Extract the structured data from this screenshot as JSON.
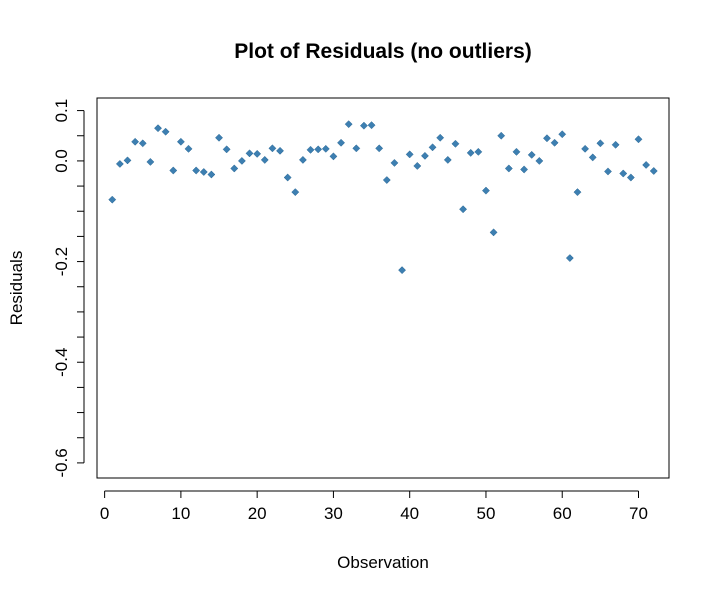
{
  "chart_data": {
    "type": "scatter",
    "title": "Plot of Residuals (no outliers)",
    "xlabel": "Observation",
    "ylabel": "Residuals",
    "xlim": [
      -1,
      74
    ],
    "ylim": [
      -0.63,
      0.125
    ],
    "x_ticks": [
      0,
      10,
      20,
      30,
      40,
      50,
      60,
      70
    ],
    "y_ticks": [
      0.1,
      0.05,
      0.0,
      -0.05,
      -0.1,
      -0.15,
      -0.2,
      -0.25,
      -0.3,
      -0.35,
      -0.4,
      -0.45,
      -0.5,
      -0.55,
      -0.6
    ],
    "y_tick_labels": [
      {
        "value": 0.1,
        "label": "0.1"
      },
      {
        "value": 0.0,
        "label": "0.0"
      },
      {
        "value": -0.2,
        "label": "-0.2"
      },
      {
        "value": -0.4,
        "label": "-0.4"
      },
      {
        "value": -0.6,
        "label": "-0.6"
      }
    ],
    "grid": false,
    "point_color": "#3d7fb1",
    "x": [
      1,
      2,
      3,
      4,
      5,
      6,
      7,
      8,
      9,
      10,
      11,
      12,
      13,
      14,
      15,
      16,
      17,
      18,
      19,
      20,
      21,
      22,
      23,
      24,
      25,
      26,
      27,
      28,
      29,
      30,
      31,
      32,
      33,
      34,
      35,
      36,
      37,
      38,
      39,
      40,
      41,
      42,
      43,
      44,
      45,
      46,
      47,
      48,
      49,
      50,
      51,
      52,
      53,
      54,
      55,
      56,
      57,
      58,
      59,
      60,
      61,
      62,
      63,
      64,
      65,
      66,
      67,
      68,
      69,
      70,
      71,
      72
    ],
    "y": [
      -0.077,
      -0.006,
      0.001,
      0.038,
      0.035,
      -0.002,
      0.065,
      0.058,
      -0.019,
      0.038,
      0.024,
      -0.019,
      -0.022,
      -0.027,
      0.046,
      0.023,
      -0.015,
      0.0,
      0.015,
      0.014,
      0.002,
      0.025,
      0.02,
      -0.033,
      -0.062,
      0.002,
      0.022,
      0.023,
      0.024,
      0.009,
      0.036,
      0.073,
      0.025,
      0.07,
      0.071,
      0.025,
      -0.038,
      -0.004,
      -0.217,
      0.013,
      -0.01,
      0.01,
      0.027,
      0.046,
      0.002,
      0.034,
      -0.096,
      0.016,
      0.018,
      -0.059,
      -0.142,
      0.05,
      -0.015,
      0.018,
      -0.017,
      0.012,
      0.0,
      0.045,
      0.036,
      0.053,
      -0.193,
      -0.062,
      0.024,
      0.007,
      0.035,
      -0.021,
      0.032,
      -0.025,
      -0.033,
      0.043,
      -0.008,
      -0.02
    ]
  }
}
